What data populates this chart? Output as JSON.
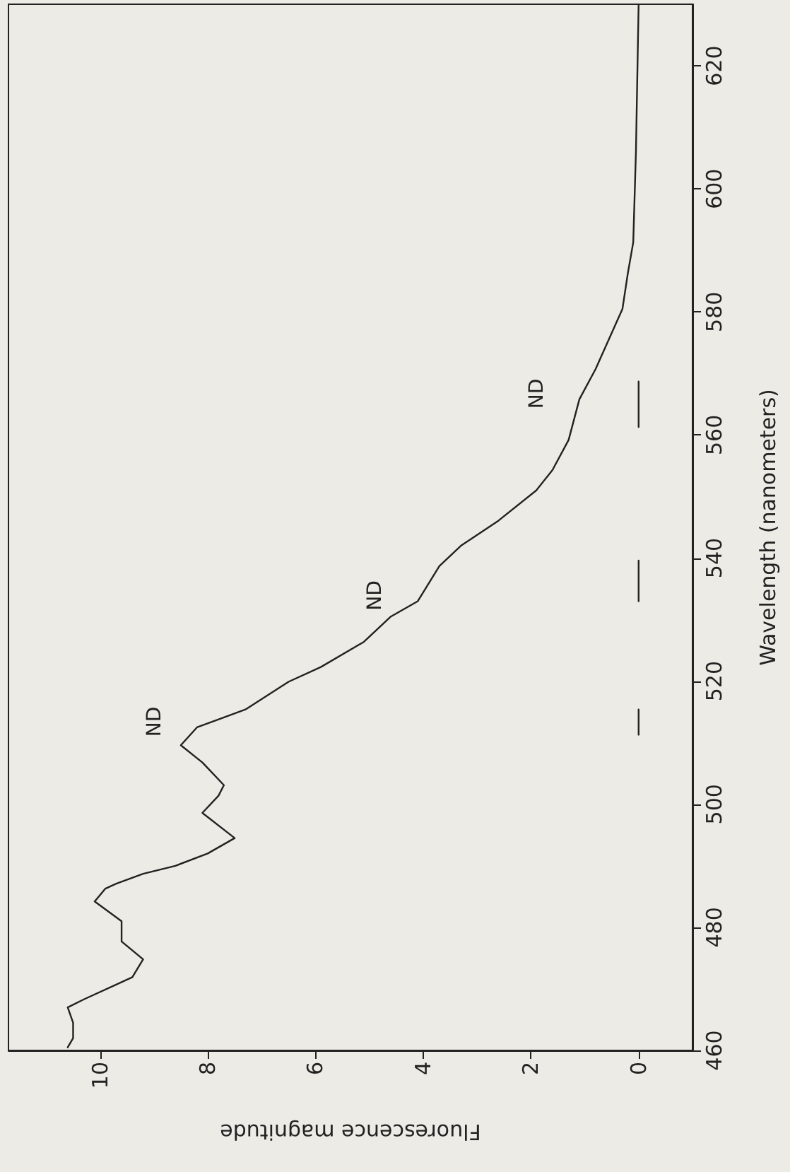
{
  "chart_data": {
    "type": "line",
    "xlabel": "Fluorescence magnitude",
    "ylabel": "Wavelength (nanometers)",
    "xlim": [
      11.7,
      -1
    ],
    "xticks": [
      10,
      8,
      6,
      4,
      2,
      0
    ],
    "ylim": [
      460,
      630
    ],
    "yticks": [
      460,
      480,
      500,
      520,
      540,
      560,
      580,
      600,
      620
    ],
    "grid": false,
    "marker": "none",
    "line_style": "solid",
    "series": [
      {
        "color": "#222222",
        "values": [
          460.5,
          462,
          464.5,
          467,
          468.3,
          470.7,
          471.9,
          474.8,
          477.7,
          481,
          484.2,
          486.3,
          487.1,
          488.7,
          490,
          492,
          494.5,
          498.6,
          501.4,
          503.1,
          506.8,
          509.6,
          512.5,
          515.4,
          519.9,
          522.3,
          526.4,
          530.5,
          533,
          538.7,
          542,
          546.1,
          551,
          554.3,
          559.2,
          565.8,
          570.7,
          580.5,
          586.3,
          591.3,
          606,
          630
        ],
        "x": [
          10.6,
          10.5,
          10.5,
          10.6,
          10.3,
          9.7,
          9.4,
          9.2,
          9.6,
          9.6,
          10.1,
          9.9,
          9.7,
          9.2,
          8.6,
          8,
          7.5,
          8.1,
          7.8,
          7.7,
          8.1,
          8.5,
          8.2,
          7.3,
          6.5,
          5.9,
          5.1,
          4.6,
          4.1,
          3.7,
          3.3,
          2.6,
          1.9,
          1.6,
          1.3,
          1.1,
          0.8,
          0.3,
          0.2,
          0.1,
          0.05,
          0
        ]
      },
      {
        "color": "#222222",
        "x": [
          0,
          0
        ],
        "values": [
          511.3,
          515.4
        ]
      },
      {
        "color": "#222222",
        "x": [
          0,
          0
        ],
        "values": [
          533,
          539.6
        ]
      },
      {
        "color": "#222222",
        "x": [
          0,
          0
        ],
        "values": [
          561.3,
          568.7
        ]
      }
    ],
    "annotations": [
      {
        "text": "ND",
        "x": 8.2,
        "y": 512.5
      },
      {
        "text": "ND",
        "x": 4.1,
        "y": 533
      },
      {
        "text": "ND",
        "x": 1.1,
        "y": 565.8
      }
    ]
  }
}
